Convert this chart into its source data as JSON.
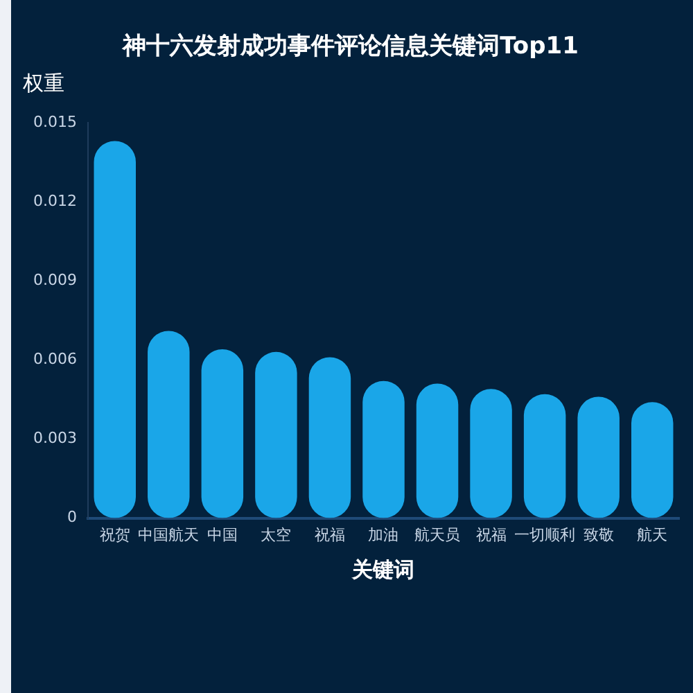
{
  "chart_data": {
    "type": "bar",
    "title": "神十六发射成功事件评论信息关键词Top11",
    "xlabel": "关键词",
    "ylabel": "权重",
    "categories": [
      "祝贺",
      "中国航天",
      "中国",
      "太空",
      "祝福",
      "加油",
      "航天员",
      "祝福",
      "一切顺利",
      "致敬",
      "航天"
    ],
    "values": [
      0.0143,
      0.0071,
      0.0064,
      0.0063,
      0.0061,
      0.0052,
      0.0051,
      0.0049,
      0.0047,
      0.0046,
      0.0044
    ],
    "color": "#1aa6e8",
    "ylim": [
      0,
      0.015
    ],
    "yticks": [
      0,
      0.003,
      0.006,
      0.009,
      0.012,
      0.015
    ],
    "grid": false
  }
}
